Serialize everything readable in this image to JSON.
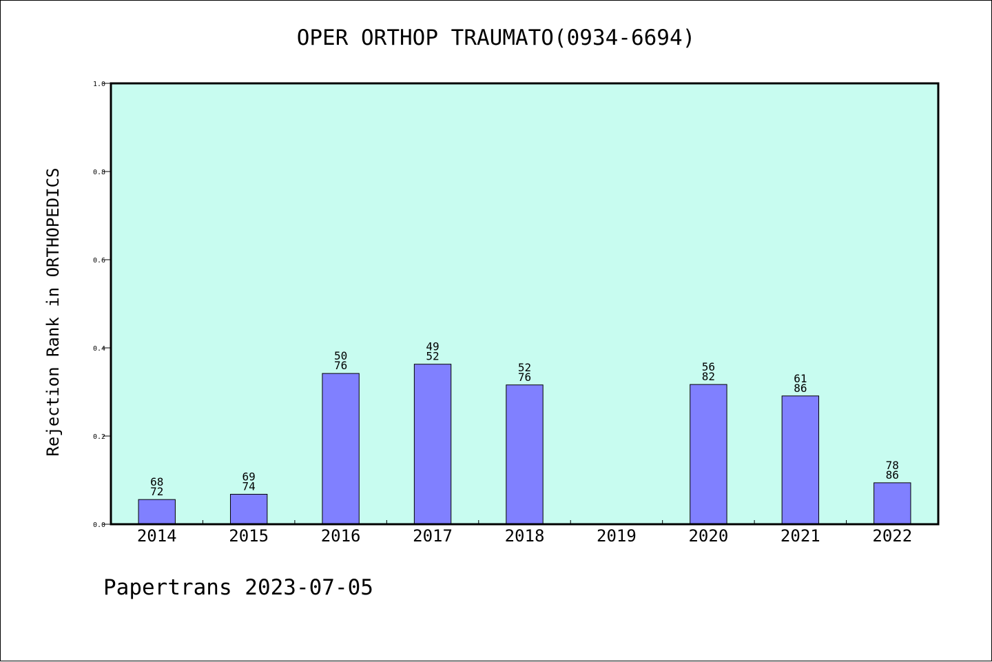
{
  "chart_data": {
    "type": "bar",
    "title": "OPER ORTHOP TRAUMATO(0934-6694)",
    "ylabel": "Rejection Rank in ORTHOPEDICS",
    "xlabel": "",
    "categories": [
      "2014",
      "2015",
      "2016",
      "2017",
      "2018",
      "2019",
      "2020",
      "2021",
      "2022"
    ],
    "values": [
      0.056,
      0.068,
      0.342,
      0.363,
      0.316,
      null,
      0.317,
      0.291,
      0.094
    ],
    "annotations": [
      [
        "68",
        "72"
      ],
      [
        "69",
        "74"
      ],
      [
        "50",
        "76"
      ],
      [
        "49",
        "52"
      ],
      [
        "52",
        "76"
      ],
      null,
      [
        "56",
        "82"
      ],
      [
        "61",
        "86"
      ],
      [
        "78",
        "86"
      ]
    ],
    "ylim": [
      0,
      1.0
    ],
    "yticks": [
      "0.0",
      "0.2",
      "0.4",
      "0.6",
      "0.8",
      "1.0"
    ],
    "grid": false,
    "colors": {
      "plot_background": "#c8fcf0",
      "bar": "#8080ff",
      "bar_edge": "#000000"
    }
  },
  "footer": {
    "text": "Papertrans 2023-07-05"
  }
}
